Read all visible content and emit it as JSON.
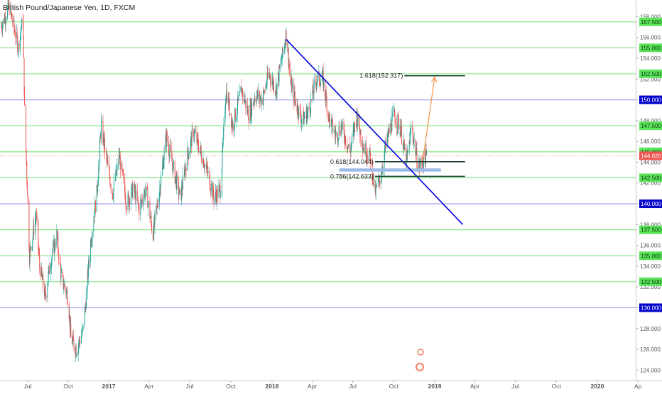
{
  "header": {
    "title": "British Pound/Japanese Yen, 1D, FXCM"
  },
  "colors": {
    "green_line": "#8ee88e",
    "blue_line": "#a8a8ee",
    "trendline": "#0000e0",
    "fib_line": "#1b4332",
    "box": "#9bbbe6",
    "arrow": "#f59a54",
    "up": "#26a69a",
    "down": "#ef5350",
    "price_badge": "#ef5350",
    "axis_text": "#555555"
  },
  "chart_data": {
    "type": "candlestick",
    "title": "British Pound/Japanese Yen, 1D, FXCM",
    "x_ticks": [
      "Jul",
      "Oct",
      "2017",
      "Apr",
      "Jul",
      "Oct",
      "2018",
      "Apr",
      "Jul",
      "Oct",
      "2019",
      "Apr",
      "Jul",
      "Oct",
      "2020",
      "Ap"
    ],
    "y_ticks": [
      124,
      126,
      128,
      130,
      132,
      134,
      136,
      138,
      140,
      142,
      144,
      146,
      148,
      150,
      152,
      154,
      156,
      158
    ],
    "y_tick_labels": [
      "124.000",
      "126.000",
      "128.000",
      "130.000",
      "132.000",
      "134.000",
      "136.000",
      "138.000",
      "140.000",
      "142.000",
      "144.000",
      "146.000",
      "148.000",
      "150.000",
      "152.000",
      "154.000",
      "156.000",
      "158.000"
    ],
    "ylim": [
      123,
      159.6
    ],
    "horizontal_levels": [
      {
        "value": 157.5,
        "label": "157.500",
        "kind": "green"
      },
      {
        "value": 155.0,
        "label": "155.000",
        "kind": "green"
      },
      {
        "value": 152.5,
        "label": "152.500",
        "kind": "green"
      },
      {
        "value": 150.0,
        "label": "150.000",
        "kind": "blue"
      },
      {
        "value": 147.5,
        "label": "147.500",
        "kind": "green"
      },
      {
        "value": 145.0,
        "label": "145.000",
        "kind": "green"
      },
      {
        "value": 142.5,
        "label": "142.500",
        "kind": "green"
      },
      {
        "value": 140.0,
        "label": "140.000",
        "kind": "blue"
      },
      {
        "value": 137.5,
        "label": "137.500",
        "kind": "green"
      },
      {
        "value": 135.0,
        "label": "135.000",
        "kind": "green"
      },
      {
        "value": 132.5,
        "label": "132.500",
        "kind": "green"
      },
      {
        "value": 130.0,
        "label": "130.000",
        "kind": "blue"
      }
    ],
    "current_price": {
      "value": 144.62,
      "label": "144.620"
    },
    "fib_levels": [
      {
        "label": "1.618(152.317)",
        "value": 152.317,
        "from": "2018-10-25",
        "to": "2019-03-10"
      },
      {
        "label": "0.618(144.044)",
        "value": 144.044,
        "from": "2018-08-20",
        "to": "2019-03-10"
      },
      {
        "label": "0.786(142.633)",
        "value": 142.633,
        "from": "2018-08-20",
        "to": "2019-03-10"
      }
    ],
    "trendline": {
      "from": {
        "date": "2018-02-02",
        "value": 155.8
      },
      "to": {
        "date": "2019-03-05",
        "value": 138.0
      }
    },
    "support_box": {
      "from": "2018-06-01",
      "to": "2019-01-15",
      "top": 143.4,
      "bottom": 143.1
    },
    "projection_arrow": {
      "from": {
        "date": "2018-12-05",
        "value": 144.1
      },
      "to": {
        "date": "2019-01-01",
        "value": 152.2
      }
    },
    "price_path": [
      [
        "2016-05-01",
        157.0
      ],
      [
        "2016-05-20",
        159.0
      ],
      [
        "2016-06-10",
        155.0
      ],
      [
        "2016-06-20",
        158.0
      ],
      [
        "2016-06-24",
        149.0
      ],
      [
        "2016-07-05",
        135.0
      ],
      [
        "2016-07-20",
        139.0
      ],
      [
        "2016-07-28",
        134.0
      ],
      [
        "2016-08-10",
        131.0
      ],
      [
        "2016-08-20",
        134.0
      ],
      [
        "2016-09-05",
        137.0
      ],
      [
        "2016-09-15",
        133.0
      ],
      [
        "2016-10-01",
        131.0
      ],
      [
        "2016-10-07",
        127.0
      ],
      [
        "2016-10-20",
        126.0
      ],
      [
        "2016-11-05",
        128.0
      ],
      [
        "2016-11-20",
        136.0
      ],
      [
        "2016-12-05",
        141.0
      ],
      [
        "2016-12-15",
        147.5
      ],
      [
        "2016-12-30",
        143.5
      ],
      [
        "2017-01-10",
        141.0
      ],
      [
        "2017-01-25",
        144.5
      ],
      [
        "2017-02-10",
        140.0
      ],
      [
        "2017-02-25",
        141.5
      ],
      [
        "2017-03-10",
        139.5
      ],
      [
        "2017-03-25",
        141.5
      ],
      [
        "2017-04-10",
        137.0
      ],
      [
        "2017-04-25",
        141.5
      ],
      [
        "2017-05-10",
        146.5
      ],
      [
        "2017-05-25",
        143.5
      ],
      [
        "2017-06-10",
        140.5
      ],
      [
        "2017-06-25",
        144.5
      ],
      [
        "2017-07-10",
        147.0
      ],
      [
        "2017-07-25",
        145.0
      ],
      [
        "2017-08-10",
        143.0
      ],
      [
        "2017-08-25",
        140.5
      ],
      [
        "2017-09-08",
        141.5
      ],
      [
        "2017-09-20",
        151.0
      ],
      [
        "2017-10-05",
        147.5
      ],
      [
        "2017-10-25",
        151.0
      ],
      [
        "2017-11-10",
        148.5
      ],
      [
        "2017-11-25",
        150.5
      ],
      [
        "2017-12-10",
        150.0
      ],
      [
        "2017-12-25",
        152.5
      ],
      [
        "2018-01-10",
        151.0
      ],
      [
        "2018-01-25",
        154.5
      ],
      [
        "2018-02-02",
        156.5
      ],
      [
        "2018-02-12",
        151.5
      ],
      [
        "2018-02-25",
        149.5
      ],
      [
        "2018-03-10",
        148.0
      ],
      [
        "2018-03-25",
        149.0
      ],
      [
        "2018-04-10",
        152.0
      ],
      [
        "2018-04-25",
        152.0
      ],
      [
        "2018-05-10",
        148.0
      ],
      [
        "2018-05-25",
        146.5
      ],
      [
        "2018-06-05",
        147.5
      ],
      [
        "2018-06-25",
        145.0
      ],
      [
        "2018-07-10",
        148.5
      ],
      [
        "2018-07-25",
        145.5
      ],
      [
        "2018-08-10",
        144.5
      ],
      [
        "2018-08-20",
        141.0
      ],
      [
        "2018-09-01",
        142.5
      ],
      [
        "2018-09-15",
        146.0
      ],
      [
        "2018-10-01",
        148.5
      ],
      [
        "2018-10-15",
        147.5
      ],
      [
        "2018-10-30",
        144.0
      ],
      [
        "2018-11-10",
        147.5
      ],
      [
        "2018-11-25",
        143.5
      ],
      [
        "2018-12-10",
        144.3
      ],
      [
        "2018-12-15",
        144.62
      ]
    ]
  }
}
